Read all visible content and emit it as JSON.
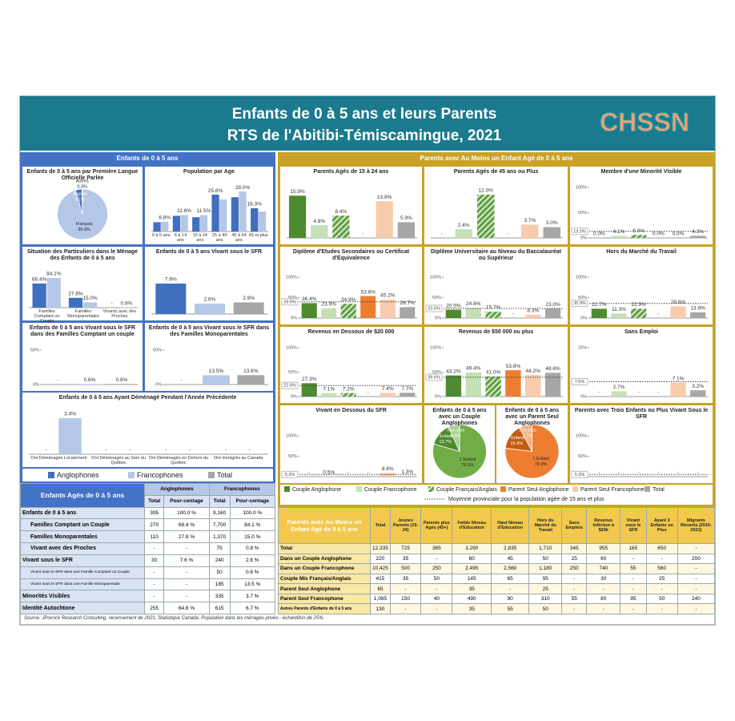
{
  "header": {
    "title_1": "Enfants de 0 à 5 ans et leurs Parents",
    "title_2": "RTS de l'Abitibi-Témiscamingue, 2021",
    "logo": "CHSSN"
  },
  "sections": {
    "left": "Enfants de 0 à 5 ans",
    "right": "Parents avec Au Moins un Enfant Agé de 0 à 5 ans"
  },
  "legend_children": [
    {
      "name": "Anglophones",
      "color": "#3f6fbf"
    },
    {
      "name": "Francophones",
      "color": "#b4c7e7"
    },
    {
      "name": "Total",
      "color": "#a6a6a6"
    }
  ],
  "legend_parents": [
    {
      "name": "Couple Anglophone",
      "color": "#4e8a2f"
    },
    {
      "name": "Couple Francophone",
      "color": "#c5e0b4"
    },
    {
      "name": "Couple Français/Anglais",
      "color": "#5f9e3f",
      "hatched": true
    },
    {
      "name": "Parent Seul Anglophone",
      "color": "#ed7d31"
    },
    {
      "name": "Parent Seul Francophone",
      "color": "#f8cbad"
    },
    {
      "name": "Total",
      "color": "#a6a6a6"
    }
  ],
  "provincial_note": "Moyenne provinciale pour la population agée de 15 ans et plus",
  "chart_data": [
    {
      "type": "pie",
      "title": "Enfants de 0 à 5 ans par Première Langue Officielle Parlée",
      "categories": [
        "Français",
        "Anglais",
        "Autres"
      ],
      "values": [
        95.6,
        4.1,
        0.3
      ],
      "value_labels": [
        "95.6%",
        "4.1%",
        "0.3%"
      ],
      "colors": [
        "#b4c7e7",
        "#3f6fbf",
        "#2f4f8f"
      ]
    },
    {
      "type": "bar",
      "title": "Population par Age",
      "categories": [
        "0 à 5 ans",
        "6 à 14 ans",
        "15 à 24 ans",
        "25 à 44 ans",
        "45 à 64 ans",
        "65 et plus"
      ],
      "ylim": [
        0,
        32
      ],
      "series": [
        {
          "values": [
            6.5,
            11.0,
            10.0,
            25.8,
            24.0,
            16.3
          ],
          "value_labels": [
            null,
            null,
            null,
            "25.8%",
            null,
            "16.3%"
          ]
        },
        {
          "values": [
            6.8,
            11.6,
            11.5,
            22.5,
            28.0,
            14.0
          ],
          "value_labels": [
            "6.8%",
            "11.6%",
            "11.5%",
            null,
            "28.0%",
            null
          ]
        }
      ]
    },
    {
      "type": "bar",
      "title": "Situation des Particuliers dans le Ménage des Enfants de 0 à 5 ans",
      "categories": [
        "Familles Comptant un Couple",
        "Familles Monoparentales",
        "Vivants avec des Proches"
      ],
      "ylim": [
        0,
        100
      ],
      "series": [
        {
          "values": [
            68.4,
            27.8,
            null
          ],
          "value_labels": [
            "68.4%",
            "27.8%",
            "-"
          ]
        },
        {
          "values": [
            84.1,
            15.0,
            0.8
          ],
          "value_labels": [
            "84.1%",
            "15.0%",
            "0.8%"
          ]
        }
      ]
    },
    {
      "type": "bar",
      "title": "Enfants de 0 à 5 ans Vivant sous le SFR",
      "ylim": [
        0,
        12
      ],
      "values": [
        7.6,
        2.6,
        2.9
      ],
      "value_labels": [
        "7.6%",
        "2.6%",
        "2.9%"
      ]
    },
    {
      "type": "bar",
      "title": "Enfants de 0 à 5 ans Vivant sous le SFR dans des Familles Comptant un couple",
      "ylim": [
        0,
        50
      ],
      "yticks": [
        {
          "value": 0,
          "label": "0%"
        },
        {
          "value": 50,
          "label": "50%"
        }
      ],
      "values": [
        null,
        0.6,
        0.8
      ],
      "value_labels": [
        "-",
        "0.6%",
        "0.8%"
      ]
    },
    {
      "type": "bar",
      "title": "Enfants de 0 à 5 ans Vivant sous le SFR dans des Familles Monoparentales",
      "ylim": [
        0,
        50
      ],
      "yticks": [
        {
          "value": 0,
          "label": "0%"
        },
        {
          "value": 50,
          "label": "50%"
        }
      ],
      "values": [
        null,
        13.5,
        13.6
      ],
      "value_labels": [
        "-",
        "13.5%",
        "13.6%"
      ]
    },
    {
      "type": "bar",
      "title": "Enfants de 0 à 5 ans Ayant Déménagé Pendant l'Année Précédente",
      "categories": [
        "Ont Déménagés Localement",
        "Ont Déménagés au Sein du Québec",
        "Ont Déménagés en Dehors du Québec",
        "Ont Immigrés au Canada"
      ],
      "ylim": [
        0,
        4
      ],
      "series": [
        {
          "values": [
            null,
            null,
            null,
            null
          ],
          "value_labels": [
            "-",
            "-",
            "-",
            "-"
          ]
        },
        {
          "values": [
            3.4,
            null,
            null,
            null
          ],
          "value_labels": [
            "3.4%",
            "-",
            "-",
            "-"
          ]
        }
      ]
    },
    {
      "type": "bar",
      "title": "Parents Agés de 15 à 24 ans",
      "ylim": [
        0,
        19
      ],
      "values": [
        15.9,
        4.8,
        8.4,
        null,
        13.8,
        5.9
      ],
      "value_labels": [
        "15.9%",
        "4.8%",
        "8.4%",
        "-",
        "13.8%",
        "5.9%"
      ]
    },
    {
      "type": "bar",
      "title": "Parents Agés de 45 ans ou Plus",
      "ylim": [
        0,
        14
      ],
      "values": [
        null,
        2.4,
        12.0,
        null,
        3.7,
        3.0
      ],
      "value_labels": [
        "-",
        "2.4%",
        "12.0%",
        "-",
        "3.7%",
        "3.0%"
      ]
    },
    {
      "type": "bar",
      "title": "Membre d'une Minorité Visible",
      "ylim": [
        0,
        100
      ],
      "yticks": [
        {
          "value": 0,
          "label": "0%"
        },
        {
          "value": 50,
          "label": "50%"
        },
        {
          "value": 100,
          "label": "100%"
        }
      ],
      "provincial": 13.0,
      "provincial_label": "13.0%",
      "values": [
        0.0,
        4.1,
        6.0,
        0.0,
        0.0,
        4.3
      ],
      "value_labels": [
        "0.0%",
        "4.1%",
        "6.0%",
        "0.0%",
        "0.0%",
        "4.3%"
      ]
    },
    {
      "type": "bar",
      "title": "Diplôme d'Etudes Secondaires ou Certificat d'Equivalence",
      "ylim": [
        0,
        100
      ],
      "yticks": [
        {
          "value": 0,
          "label": "0%"
        },
        {
          "value": 50,
          "label": "50%"
        },
        {
          "value": 100,
          "label": "100%"
        }
      ],
      "provincial": 39.6,
      "provincial_label": "39.6%",
      "values": [
        36.4,
        23.9,
        34.9,
        53.8,
        45.2,
        26.7
      ],
      "value_labels": [
        "36.4%",
        "23.9%",
        "34.9%",
        "53.8%",
        "45.2%",
        "26.7%"
      ]
    },
    {
      "type": "bar",
      "title": "Diplôme Universitaire au Niveau du Baccalauréat ou Supérieur",
      "ylim": [
        0,
        100
      ],
      "yticks": [
        {
          "value": 0,
          "label": "0%"
        },
        {
          "value": 50,
          "label": "50%"
        },
        {
          "value": 100,
          "label": "100%"
        }
      ],
      "provincial": 23.5,
      "provincial_label": "23.5%",
      "values": [
        20.5,
        24.6,
        15.7,
        null,
        8.3,
        23.0
      ],
      "value_labels": [
        "20.5%",
        "24.6%",
        "15.7%",
        "-",
        "8.3%",
        "23.0%"
      ]
    },
    {
      "type": "bar",
      "title": "Hors du Marché du Travail",
      "ylim": [
        0,
        100
      ],
      "yticks": [
        {
          "value": 0,
          "label": "0%"
        },
        {
          "value": 50,
          "label": "50%"
        },
        {
          "value": 100,
          "label": "100%"
        }
      ],
      "provincial": 35.9,
      "provincial_label": "35.9%",
      "values": [
        22.7,
        11.3,
        22.9,
        null,
        28.6,
        13.9
      ],
      "value_labels": [
        "22.7%",
        "11.3%",
        "22.9%",
        "-",
        "28.6%",
        "13.9%"
      ]
    },
    {
      "type": "bar",
      "title": "Revenus en Dessous de $20 000",
      "ylim": [
        0,
        100
      ],
      "yticks": [
        {
          "value": 0,
          "label": "0%"
        },
        {
          "value": 50,
          "label": "50%"
        },
        {
          "value": 100,
          "label": "100%"
        }
      ],
      "provincial": 22.6,
      "provincial_label": "22.6%",
      "values": [
        27.3,
        7.1,
        7.2,
        null,
        7.4,
        7.7
      ],
      "value_labels": [
        "27.3%",
        "7.1%",
        "7.2%",
        "-",
        "7.4%",
        "7.7%"
      ]
    },
    {
      "type": "bar",
      "title": "Revenus de $50 000 ou plus",
      "ylim": [
        0,
        100
      ],
      "yticks": [
        {
          "value": 0,
          "label": "0%"
        },
        {
          "value": 50,
          "label": "50%"
        },
        {
          "value": 100,
          "label": "100%"
        }
      ],
      "provincial": 39.6,
      "provincial_label": "39.6%",
      "values": [
        43.2,
        49.4,
        41.0,
        53.8,
        44.2,
        48.6
      ],
      "value_labels": [
        "43.2%",
        "49.4%",
        "41.0%",
        "53.8%",
        "44.2%",
        "48.6%"
      ]
    },
    {
      "type": "bar",
      "title": "Sans Emploi",
      "ylim": [
        0,
        25
      ],
      "yticks": [
        {
          "value": 0,
          "label": "0%"
        },
        {
          "value": 25,
          "label": "25%"
        }
      ],
      "provincial": 7.6,
      "provincial_label": "7.6%",
      "values": [
        null,
        2.7,
        null,
        null,
        7.1,
        3.2
      ],
      "value_labels": [
        "-",
        "2.7%",
        "-",
        "-",
        "7.1%",
        "3.2%"
      ]
    },
    {
      "type": "bar",
      "title": "Vivant en Dessous du SFR",
      "ylim": [
        0,
        100
      ],
      "yticks": [
        {
          "value": 0,
          "label": "0%"
        },
        {
          "value": 50,
          "label": "50%"
        },
        {
          "value": 100,
          "label": "100%"
        }
      ],
      "provincial": 5.3,
      "provincial_label": "5.3%",
      "values": [
        null,
        0.5,
        null,
        null,
        8.8,
        1.3
      ],
      "value_labels": [
        "-",
        "0.5%",
        "-",
        "-",
        "8.8%",
        "1.3%"
      ]
    },
    {
      "type": "pie",
      "title": "Enfants de 0 à 5 ans avec un Couple Anglophones",
      "categories": [
        "1 Enfant",
        "2 Enfants",
        "3 ou plus"
      ],
      "values": [
        79.5,
        13.7,
        6.8
      ],
      "value_labels": [
        "79.5%",
        "13.7%",
        "6.8%"
      ],
      "colors": [
        "#70ad47",
        "#4e8a2f",
        "#a9d18e"
      ]
    },
    {
      "type": "pie",
      "title": "Enfants de 0 à 5 ans avec un Parent Seul Anglophones",
      "categories": [
        "1 Enfant",
        "2 Enfants",
        "3 ou plus"
      ],
      "values": [
        76.9,
        15.4,
        7.7
      ],
      "value_labels": [
        "76.9%",
        "15.4%",
        "7.7%"
      ],
      "colors": [
        "#ed7d31",
        "#c55a11",
        "#f4b183"
      ]
    },
    {
      "type": "bar",
      "title": "Parents avec Trois Enfants ou Plus Vivant Sous le SFR",
      "ylim": [
        0,
        100
      ],
      "yticks": [
        {
          "value": 0,
          "label": "0%"
        },
        {
          "value": 50,
          "label": "50%"
        },
        {
          "value": 100,
          "label": "100%"
        }
      ],
      "provincial": 5.3,
      "provincial_label": "5.3%",
      "values": [
        null,
        null,
        null,
        null,
        null,
        null
      ],
      "value_labels": [
        "-",
        "-",
        "-",
        "-",
        "-",
        "-"
      ]
    }
  ],
  "tables": {
    "children": {
      "title": "Enfants Agés de 0 à 5 ans",
      "group_headers": [
        "Anglophones",
        "Francophones"
      ],
      "col_headers": [
        "Total",
        "Pour-centage",
        "Total",
        "Pour-centage"
      ],
      "rows": [
        [
          "Enfants de 0 à 5 ans",
          "395",
          "100.0 %",
          "9,160",
          "100.0 %"
        ],
        [
          "Familles Comptant un Couple",
          "270",
          "68.4 %",
          "7,700",
          "84.1 %"
        ],
        [
          "Familles Monoparentales",
          "110",
          "27.8 %",
          "1,370",
          "15.0 %"
        ],
        [
          "Vivant avec des Proches",
          "-",
          "-",
          "75",
          "0.8 %"
        ],
        [
          "Vivant sous le SFR",
          "30",
          "7.6 %",
          "240",
          "2.6 %"
        ],
        [
          "Vivant sous le SFR dans une Famille Comptant un Couple",
          "-",
          "-",
          "50",
          "0.6 %"
        ],
        [
          "Vivant sous le SFR dans une Famille Monoparentale",
          "-",
          "-",
          "185",
          "13.5 %"
        ],
        [
          "Minorités Visibles",
          "-",
          "-",
          "335",
          "3.7 %"
        ],
        [
          "Identité Autochtone",
          "255",
          "64.6 %",
          "615",
          "6.7 %"
        ]
      ]
    },
    "parents": {
      "header": [
        "Parents avec Au Moins un Enfant Agé de 0 à 5 ans",
        "Total",
        "Jeunes Parents (15-24)",
        "Parents plus Agés (45+)",
        "Faible Niveau d'Education",
        "Haut Niveau d'Education",
        "Hors du Marché du Travail",
        "Sans Emplois",
        "Revenus Inférieur à $20k",
        "Vivant sous le SFR",
        "Ayant 3 Enfants ou Plus",
        "Migrants Récents (2016-2021)"
      ],
      "rows": [
        [
          "Total",
          "12,335",
          "725",
          "365",
          "3,290",
          "2,835",
          "1,710",
          "345",
          "955",
          "165",
          "650",
          "-"
        ],
        [
          "Dans un Couple Anglophone",
          "220",
          "35",
          "-",
          "80",
          "45",
          "50",
          "25",
          "60",
          "-",
          "-",
          "200"
        ],
        [
          "Dans un Couple Francophone",
          "10,425",
          "500",
          "250",
          "2,495",
          "2,560",
          "1,180",
          "250",
          "740",
          "55",
          "560",
          "-"
        ],
        [
          "Couple Mix Français/Anglais",
          "415",
          "35",
          "50",
          "145",
          "65",
          "95",
          "-",
          "30",
          "-",
          "25",
          "-"
        ],
        [
          "Parent Seul Anglophone",
          "65",
          "-",
          "-",
          "35",
          "-",
          "25",
          "-",
          "-",
          "-",
          "-",
          "-"
        ],
        [
          "Parent Seul Francophone",
          "1,085",
          "150",
          "40",
          "490",
          "90",
          "310",
          "55",
          "80",
          "95",
          "50",
          "240"
        ],
        [
          "Autres Parents d'Enfants de 0 à 5 ans",
          "130",
          "-",
          "-",
          "35",
          "55",
          "50",
          "-",
          "-",
          "-",
          "-",
          "-"
        ]
      ]
    }
  },
  "source": "Source: JPocock Research Consulting, recensement de 2021, Statistique Canada. Population dans les ménages privés - échantillon de 25%."
}
